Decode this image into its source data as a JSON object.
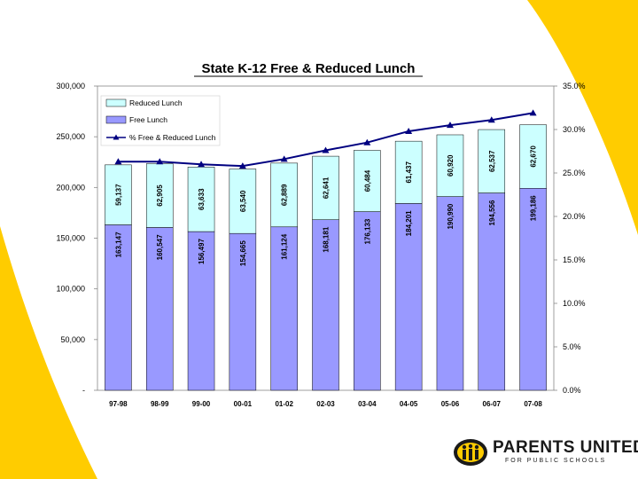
{
  "colors": {
    "free": "#9999ff",
    "reduced": "#ccffff",
    "line": "#000080",
    "yellow": "#ffcc00"
  },
  "brand": {
    "name": "PARENTS UNITED",
    "tagline": "FOR PUBLIC SCHOOLS"
  },
  "chart_data": {
    "type": "bar",
    "stacked": true,
    "title": "State K-12 Free & Reduced Lunch",
    "categories": [
      "97-98",
      "98-99",
      "99-00",
      "00-01",
      "01-02",
      "02-03",
      "03-04",
      "04-05",
      "05-06",
      "06-07",
      "07-08"
    ],
    "series": [
      {
        "name": "Free Lunch",
        "axis": "left",
        "values": [
          163147,
          160547,
          156497,
          154665,
          161124,
          168181,
          176133,
          184201,
          190990,
          194556,
          199186
        ],
        "labels": [
          "163,147",
          "160,547",
          "156,497",
          "154,665",
          "161,124",
          "168,181",
          "176,133",
          "184,201",
          "190,990",
          "194,556",
          "199,186"
        ]
      },
      {
        "name": "Reduced Lunch",
        "axis": "left",
        "values": [
          59137,
          62905,
          63633,
          63540,
          62889,
          62641,
          60484,
          61437,
          60920,
          62537,
          62670
        ],
        "labels": [
          "59,137",
          "62,905",
          "63,633",
          "63,540",
          "62,889",
          "62,641",
          "60,484",
          "61,437",
          "60,920",
          "62,537",
          "62,670"
        ]
      },
      {
        "name": "% Free & Reduced Lunch",
        "type": "line",
        "axis": "right",
        "values": [
          26.3,
          26.3,
          26.0,
          25.8,
          26.6,
          27.6,
          28.5,
          29.8,
          30.5,
          31.1,
          31.9
        ]
      }
    ],
    "ylim": [
      0,
      300000
    ],
    "y2lim": [
      0,
      35
    ],
    "yticks": [
      {
        "value": 0,
        "label": "-"
      },
      {
        "value": 50000,
        "label": "50,000"
      },
      {
        "value": 100000,
        "label": "100,000"
      },
      {
        "value": 150000,
        "label": "150,000"
      },
      {
        "value": 200000,
        "label": "200,000"
      },
      {
        "value": 250000,
        "label": "250,000"
      },
      {
        "value": 300000,
        "label": "300,000"
      }
    ],
    "y2ticks": [
      {
        "value": 0,
        "label": "0.0%"
      },
      {
        "value": 5,
        "label": "5.0%"
      },
      {
        "value": 10,
        "label": "10.0%"
      },
      {
        "value": 15,
        "label": "15.0%"
      },
      {
        "value": 20,
        "label": "20.0%"
      },
      {
        "value": 25,
        "label": "25.0%"
      },
      {
        "value": 30,
        "label": "30.0%"
      },
      {
        "value": 35,
        "label": "35.0%"
      }
    ],
    "legend": {
      "position": "top-left",
      "items": [
        "Reduced Lunch",
        "Free Lunch",
        "% Free & Reduced Lunch"
      ]
    }
  }
}
